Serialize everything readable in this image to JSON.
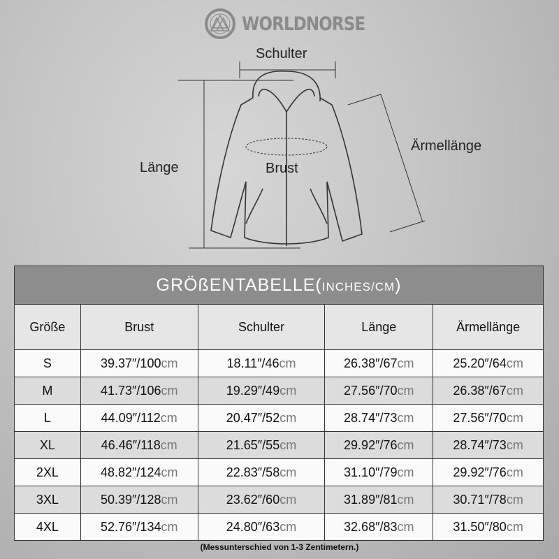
{
  "brand": {
    "name": "WORLDNORSE",
    "logo_icon": "valknut-knot-icon"
  },
  "diagram": {
    "shoulder": "Schulter",
    "length": "Länge",
    "chest": "Brust",
    "sleeve": "Ärmellänge"
  },
  "table": {
    "title": "GRÖßENTABELLE(",
    "title_unit": "INCHES/CM",
    "title_close": ")",
    "headers": [
      "Größe",
      "Brust",
      "Schulter",
      "Länge",
      "Ärmellänge"
    ],
    "rows": [
      {
        "size": "S",
        "brust": [
          "39.37″/100",
          "cm"
        ],
        "schulter": [
          "18.11″/46",
          "cm"
        ],
        "laenge": [
          "26.38″/67",
          "cm"
        ],
        "aermel": [
          "25.20″/64",
          "cm"
        ]
      },
      {
        "size": "M",
        "brust": [
          "41.73″/106",
          "cm"
        ],
        "schulter": [
          "19.29″/49",
          "cm"
        ],
        "laenge": [
          "27.56″/70",
          "cm"
        ],
        "aermel": [
          "26.38″/67",
          "cm"
        ]
      },
      {
        "size": "L",
        "brust": [
          "44.09″/112",
          "cm"
        ],
        "schulter": [
          "20.47″/52",
          "cm"
        ],
        "laenge": [
          "28.74″/73",
          "cm"
        ],
        "aermel": [
          "27.56″/70",
          "cm"
        ]
      },
      {
        "size": "XL",
        "brust": [
          "46.46″/118",
          "cm"
        ],
        "schulter": [
          "21.65″/55",
          "cm"
        ],
        "laenge": [
          "29.92″/76",
          "cm"
        ],
        "aermel": [
          "28.74″/73",
          "cm"
        ]
      },
      {
        "size": "2XL",
        "brust": [
          "48.82″/124",
          "cm"
        ],
        "schulter": [
          "22.83″/58",
          "cm"
        ],
        "laenge": [
          "31.10″/79",
          "cm"
        ],
        "aermel": [
          "29.92″/76",
          "cm"
        ]
      },
      {
        "size": "3XL",
        "brust": [
          "50.39″/128",
          "cm"
        ],
        "schulter": [
          "23.62″/60",
          "cm"
        ],
        "laenge": [
          "31.89″/81",
          "cm"
        ],
        "aermel": [
          "30.71″/78",
          "cm"
        ]
      },
      {
        "size": "4XL",
        "brust": [
          "52.76″/134",
          "cm"
        ],
        "schulter": [
          "24.80″/63",
          "cm"
        ],
        "laenge": [
          "32.68″/83",
          "cm"
        ],
        "aermel": [
          "31.50″/80",
          "cm"
        ]
      }
    ]
  },
  "note": "(Messunterschied von 1-3 Zentimetern.)"
}
